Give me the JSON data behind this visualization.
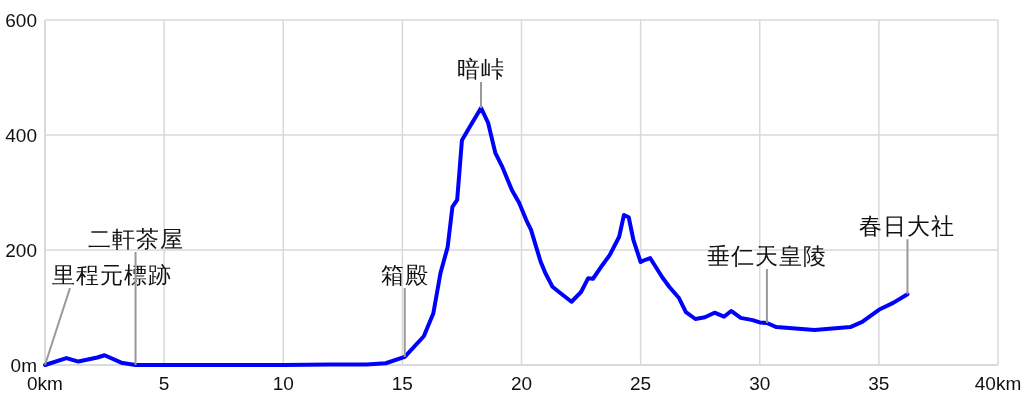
{
  "chart_data": {
    "type": "line",
    "x": [
      0,
      0.9,
      1.4,
      2.2,
      2.5,
      3.2,
      3.8,
      5,
      7,
      10,
      12,
      13.5,
      14.3,
      15.1,
      15.9,
      16.3,
      16.6,
      16.9,
      17.1,
      17.3,
      17.4,
      17.5,
      17.8,
      18.3,
      18.6,
      18.9,
      19.2,
      19.6,
      19.9,
      20.2,
      20.4,
      20.8,
      21.0,
      21.2,
      21.3,
      21.6,
      22.1,
      22.5,
      22.8,
      23.0,
      23.4,
      23.7,
      24.1,
      24.3,
      24.5,
      24.7,
      25.0,
      25.2,
      25.4,
      25.9,
      26.2,
      26.6,
      26.9,
      27.3,
      27.7,
      28.1,
      28.5,
      28.8,
      29.2,
      29.7,
      30.0,
      30.3,
      30.7,
      32.3,
      33.8,
      34.3,
      35.0,
      35.6,
      36.2
    ],
    "values": [
      0,
      12,
      6,
      13,
      17,
      4,
      0,
      0,
      0,
      0,
      1,
      1,
      3,
      14,
      50,
      90,
      160,
      205,
      275,
      287,
      339,
      391,
      412,
      447,
      421,
      369,
      344,
      304,
      282,
      252,
      235,
      180,
      160,
      144,
      136,
      126,
      110,
      127,
      151,
      150,
      174,
      191,
      223,
      261,
      257,
      217,
      179,
      183,
      186,
      153,
      136,
      117,
      92,
      80,
      83,
      91,
      84,
      94,
      82,
      78,
      74,
      73,
      66,
      61,
      66,
      75,
      96,
      108,
      123
    ],
    "color": "#0000ff",
    "xlim": [
      0,
      40
    ],
    "xticks": [
      {
        "value": 0,
        "label": "0km"
      },
      5,
      10,
      15,
      20,
      25,
      30,
      35,
      {
        "value": 40,
        "label": "40km"
      }
    ],
    "ylim": [
      0,
      600
    ],
    "yticks": [
      {
        "value": 0,
        "label": "0m"
      },
      200,
      400,
      600
    ],
    "grid": true,
    "annotations": [
      {
        "text": "里程元標跡",
        "x": 0,
        "y": 0
      },
      {
        "text": "二軒茶屋",
        "x": 3.8,
        "y": 0
      },
      {
        "text": "箱殿",
        "x": 15.1,
        "y": 14
      },
      {
        "text": "暗峠",
        "x": 18.3,
        "y": 447
      },
      {
        "text": "垂仁天皇陵",
        "x": 30.3,
        "y": 73
      },
      {
        "text": "春日大社",
        "x": 36.2,
        "y": 123
      }
    ]
  }
}
